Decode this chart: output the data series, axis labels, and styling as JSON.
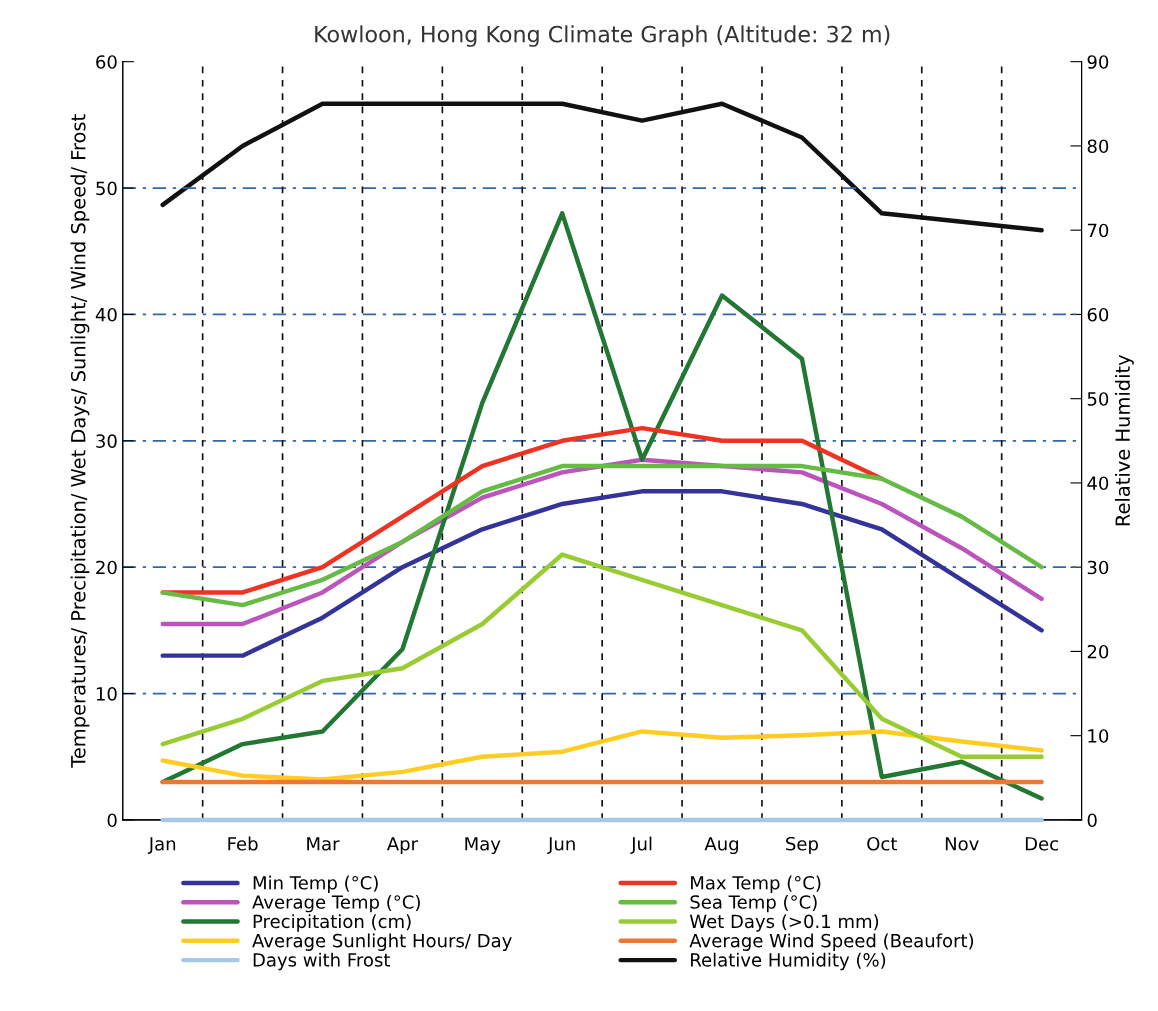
{
  "chart_data": {
    "type": "line",
    "title": "Kowloon, Hong Kong Climate Graph (Altitude: 32 m)",
    "ylabel": "Temperatures/ Precipitation/ Wet Days/ Sunlight/ Wind Speed/ Frost",
    "y2label": "Relative Humidity",
    "categories": [
      "Jan",
      "Feb",
      "Mar",
      "Apr",
      "May",
      "Jun",
      "Jul",
      "Aug",
      "Sep",
      "Oct",
      "Nov",
      "Dec"
    ],
    "ylim": [
      0,
      60
    ],
    "yticks": [
      0,
      10,
      20,
      30,
      40,
      50,
      60
    ],
    "y2lim": [
      0,
      90
    ],
    "y2ticks": [
      0,
      10,
      20,
      30,
      40,
      50,
      60,
      70,
      80,
      90
    ],
    "grid": true,
    "legend": "bottom",
    "marker": "none",
    "line_style": "solid",
    "series": [
      {
        "name": "Min Temp (°C)",
        "color": "#333399",
        "values": [
          13,
          13,
          16,
          20,
          23,
          25,
          26,
          26,
          25,
          23,
          19,
          15
        ]
      },
      {
        "name": "Average Temp (°C)",
        "color": "#bb55bb",
        "values": [
          15.5,
          15.5,
          18,
          22,
          25.5,
          27.5,
          28.5,
          28,
          27.5,
          25,
          21.5,
          17.5
        ]
      },
      {
        "name": "Precipitation (cm)",
        "color": "#227733",
        "values": [
          3,
          6,
          7,
          13.5,
          33,
          48,
          28.5,
          41.5,
          36.5,
          3.4,
          4.6,
          1.7
        ]
      },
      {
        "name": "Average Sunlight Hours/ Day",
        "color": "#ffcc22",
        "values": [
          4.7,
          3.5,
          3.2,
          3.8,
          5,
          5.4,
          7,
          6.5,
          6.7,
          7,
          6.2,
          5.5
        ]
      },
      {
        "name": "Days with Frost",
        "color": "#a8c8e8",
        "values": [
          0,
          0,
          0,
          0,
          0,
          0,
          0,
          0,
          0,
          0,
          0,
          0
        ]
      },
      {
        "name": "Max Temp (°C)",
        "color": "#ee3322",
        "values": [
          18,
          18,
          20,
          24,
          28,
          30,
          31,
          30,
          30,
          27,
          null,
          null
        ]
      },
      {
        "name": "Sea Temp (°C)",
        "color": "#66bb44",
        "values": [
          18,
          17,
          19,
          22,
          26,
          28,
          28,
          28,
          28,
          27,
          24,
          20
        ]
      },
      {
        "name": "Wet Days (>0.1 mm)",
        "color": "#99cc33",
        "values": [
          6,
          8,
          11,
          12,
          15.5,
          21,
          19,
          17,
          15,
          8,
          5,
          5
        ]
      },
      {
        "name": "Average Wind Speed (Beaufort)",
        "color": "#ee7733",
        "values": [
          3,
          3,
          3,
          3,
          3,
          3,
          3,
          3,
          3,
          3,
          3,
          3
        ]
      },
      {
        "name": "Relative Humidity (%)",
        "color": "#111111",
        "axis": "y2",
        "values": [
          73,
          80,
          85,
          85,
          85,
          85,
          83,
          85,
          81,
          72,
          71,
          70
        ]
      }
    ]
  }
}
